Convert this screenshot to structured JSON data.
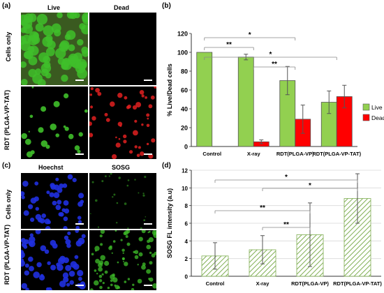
{
  "panel_labels": {
    "a": "(a)",
    "b": "(b)",
    "c": "(c)",
    "d": "(d)"
  },
  "panel_a": {
    "col_headers": [
      "Live",
      "Dead"
    ],
    "row_labels": [
      "Cells only",
      "RDT (PLGA-VP-TAT)"
    ],
    "colors": {
      "live": "#3fbf2a",
      "dead": "#e02020",
      "background": "#000000"
    }
  },
  "panel_c": {
    "col_headers": [
      "Hoechst",
      "SOSG"
    ],
    "row_labels": [
      "Cells only",
      "RDT (PLGA-VP-TAT)"
    ],
    "colors": {
      "hoechst": "#2030e0",
      "sosg": "#3fbf2a",
      "background": "#000000"
    }
  },
  "chart_data": [
    {
      "id": "b",
      "type": "bar",
      "ylabel": "% Live/Dead cells",
      "ylim": [
        0,
        120
      ],
      "yticks": [
        0,
        20,
        40,
        60,
        80,
        100,
        120
      ],
      "categories": [
        "Control",
        "X-ray",
        "RDT(PLGA-VP)",
        "RDT(PLGA-VP-TAT)"
      ],
      "series": [
        {
          "name": "Live",
          "color": "#92d050",
          "values": [
            100,
            95,
            70,
            47
          ],
          "errors": [
            0,
            3,
            15,
            12
          ]
        },
        {
          "name": "Dead",
          "color": "#ff0000",
          "values": [
            0,
            5,
            29,
            53
          ],
          "errors": [
            0,
            2,
            15,
            12
          ]
        }
      ],
      "legend": "right",
      "significance": [
        "*",
        "**",
        "*",
        "**"
      ]
    },
    {
      "id": "d",
      "type": "bar",
      "ylabel": "SOSG FL intensity (a.u)",
      "ylim": [
        0,
        12
      ],
      "yticks": [
        0,
        2,
        4,
        6,
        8,
        10,
        12
      ],
      "categories": [
        "Control",
        "X-ray",
        "RDT(PLGA-VP)",
        "RDT(PLGA-VP-TAT)"
      ],
      "series": [
        {
          "color": "#b5d69a",
          "values": [
            2.3,
            3.0,
            4.7,
            8.8
          ],
          "errors": [
            1.5,
            1.6,
            3.6,
            2.8
          ]
        }
      ],
      "significance": [
        "*",
        "*",
        "**",
        "**"
      ]
    }
  ]
}
